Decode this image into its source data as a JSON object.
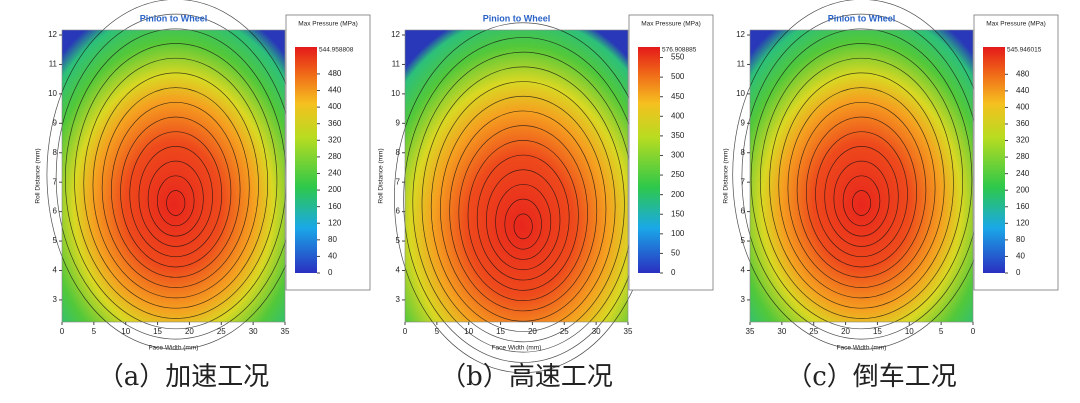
{
  "chart_data": [
    {
      "type": "contour",
      "title": "Pinion to Wheel",
      "xlabel": "Face Width (mm)",
      "ylabel": "Roll Distance (mm)",
      "colorbar_title": "Max Pressure (MPa)",
      "caption": "（a）加速工况",
      "xlim": [
        0,
        35
      ],
      "xticks": [
        0,
        5,
        10,
        15,
        20,
        25,
        30,
        35
      ],
      "ylim": [
        2.25,
        12.17
      ],
      "yticks": [
        3,
        4,
        5,
        6,
        7,
        8,
        9,
        10,
        11,
        12
      ],
      "clim": [
        0,
        544.958808
      ],
      "cticks": [
        0,
        40,
        80,
        120,
        160,
        200,
        240,
        280,
        320,
        360,
        400,
        440,
        480
      ]
    },
    {
      "type": "contour",
      "title": "Pinion to Wheel",
      "xlabel": "Face Width (mm)",
      "ylabel": "Roll Distance (mm)",
      "colorbar_title": "Max Pressure (MPa)",
      "caption": "（b）高速工况",
      "xlim": [
        0,
        35
      ],
      "xticks": [
        0,
        5,
        10,
        15,
        20,
        25,
        30,
        35
      ],
      "ylim": [
        2.25,
        12.17
      ],
      "yticks": [
        3,
        4,
        5,
        6,
        7,
        8,
        9,
        10,
        11,
        12
      ],
      "clim": [
        0,
        576.908885
      ],
      "cticks": [
        0,
        50,
        100,
        150,
        200,
        250,
        300,
        350,
        400,
        450,
        500,
        550
      ]
    },
    {
      "type": "contour",
      "title": "Pinion to Wheel",
      "xlabel": "Face Width (mm)",
      "ylabel": "Roll Distance (mm)",
      "colorbar_title": "Max Pressure (MPa)",
      "caption": "（c）倒车工况",
      "xlim": [
        35,
        0
      ],
      "xticks": [
        35,
        30,
        25,
        20,
        15,
        10,
        5,
        0
      ],
      "ylim": [
        2.25,
        12.17
      ],
      "yticks": [
        3,
        4,
        5,
        6,
        7,
        8,
        9,
        10,
        11,
        12
      ],
      "clim": [
        0,
        545.946015
      ],
      "cticks": [
        0,
        40,
        80,
        120,
        160,
        200,
        240,
        280,
        320,
        360,
        400,
        440,
        480
      ]
    }
  ]
}
